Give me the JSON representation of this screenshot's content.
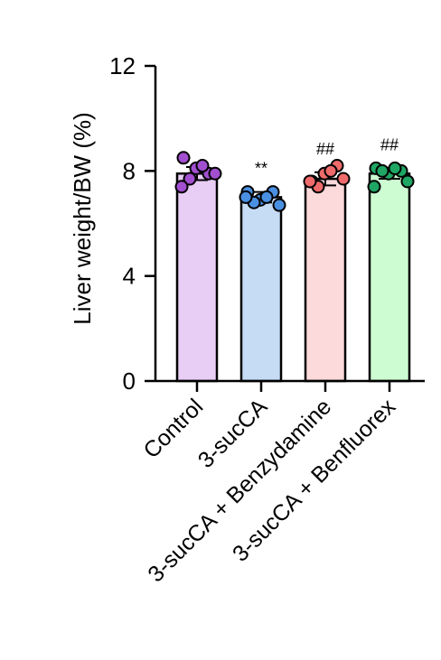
{
  "chart_data": {
    "type": "bar",
    "ylabel": "Liver weight/BW (%)",
    "ylim": [
      0,
      12
    ],
    "yticks": [
      0,
      4,
      8,
      12
    ],
    "categories": [
      "Control",
      "3-sucCA",
      "3-sucCA + Benzydamine",
      "3-sucCA + Benfluorex"
    ],
    "values": [
      7.9,
      7.0,
      7.7,
      7.9
    ],
    "errors": [
      0.25,
      0.2,
      0.25,
      0.2
    ],
    "significance": [
      "",
      "**",
      "##",
      "##"
    ],
    "points": [
      [
        8.5,
        8.1,
        7.9,
        7.9,
        8.2,
        7.7,
        7.4
      ],
      [
        7.2,
        6.9,
        7.2,
        6.7,
        7.0,
        6.8,
        7.0
      ],
      [
        7.6,
        7.9,
        8.2,
        7.7,
        8.0,
        7.4,
        7.6
      ],
      [
        8.1,
        7.9,
        8.0,
        7.6,
        8.1,
        8.0,
        7.4
      ]
    ],
    "colors": {
      "bar_fill": [
        "#e8cdf5",
        "#c6dcf5",
        "#fcd9da",
        "#cdfbd2"
      ],
      "point_fill": [
        "#a24fd0",
        "#4a90e2",
        "#ef6b6b",
        "#1fa664"
      ]
    },
    "grid": false
  }
}
